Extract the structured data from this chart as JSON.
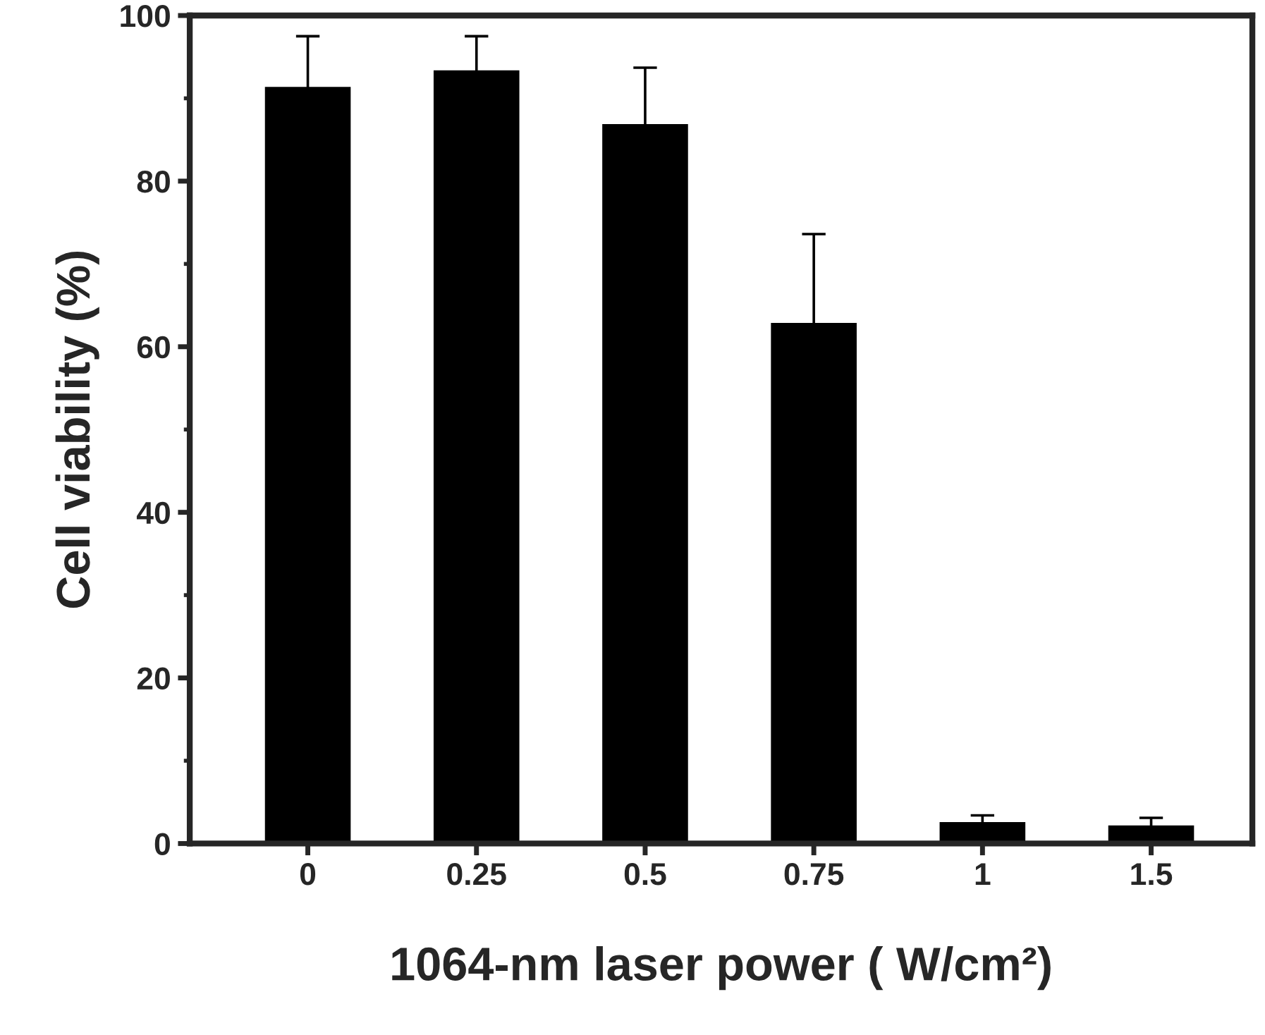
{
  "chart_data": {
    "type": "bar",
    "xlabel": "1064-nm laser power ( W/cm²)",
    "ylabel": "Cell viability (%)",
    "categories": [
      "0",
      "0.25",
      "0.5",
      "0.75",
      "1",
      "1.5"
    ],
    "values": [
      91.5,
      93.5,
      87,
      63,
      2.7,
      2.3
    ],
    "errors": [
      6,
      4,
      6.7,
      10.6,
      0.7,
      0.8
    ],
    "color": "#000000",
    "ylim": [
      0,
      100
    ],
    "yticks": [
      0,
      20,
      40,
      60,
      80,
      100
    ],
    "grid": false,
    "legend": false
  }
}
